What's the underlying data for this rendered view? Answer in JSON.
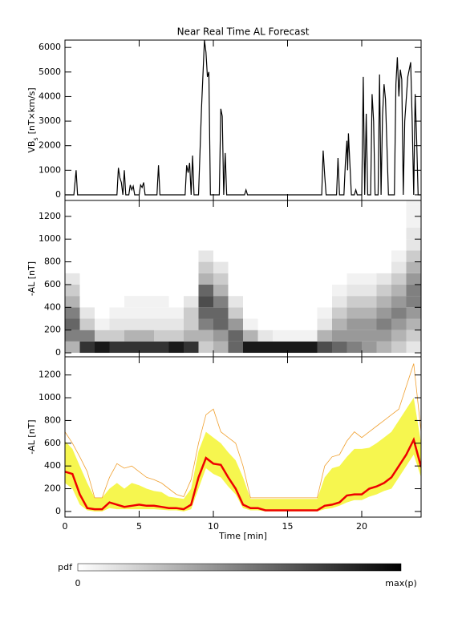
{
  "chart_data": [
    {
      "type": "line",
      "title": "Near Real Time AL Forecast",
      "ylabel": [
        "VB",
        "s",
        "[nT×km/s]"
      ],
      "color": "#000000",
      "xlim": [
        0,
        24
      ],
      "xticks": [
        0,
        5,
        10,
        15,
        20
      ],
      "show_xtick_labels": false,
      "ylim": [
        -230,
        6300
      ],
      "yticks": [
        0,
        1000,
        2000,
        3000,
        4000,
        5000,
        6000
      ],
      "x": [
        0,
        0.6,
        0.75,
        0.85,
        3.5,
        3.6,
        3.7,
        3.8,
        3.9,
        4.0,
        4.1,
        4.3,
        4.4,
        4.5,
        4.6,
        4.7,
        5.0,
        5.1,
        5.2,
        5.3,
        5.4,
        6.2,
        6.3,
        6.4,
        8.1,
        8.2,
        8.3,
        8.4,
        8.5,
        8.6,
        8.7,
        9.0,
        9.2,
        9.4,
        9.5,
        9.6,
        9.7,
        9.8,
        10.4,
        10.5,
        10.6,
        10.7,
        10.8,
        10.9,
        12.1,
        12.2,
        12.3,
        17.3,
        17.4,
        17.5,
        17.6,
        18.3,
        18.4,
        18.5,
        18.8,
        18.9,
        19.0,
        19.05,
        19.1,
        19.3,
        19.5,
        19.6,
        19.7,
        20.0,
        20.1,
        20.2,
        20.3,
        20.4,
        20.6,
        20.7,
        20.8,
        20.9,
        21.1,
        21.2,
        21.3,
        21.4,
        21.5,
        21.6,
        21.7,
        21.8,
        22.2,
        22.3,
        22.4,
        22.5,
        22.6,
        22.7,
        22.8,
        22.9,
        23.1,
        23.3,
        23.4,
        23.5,
        23.6,
        23.7,
        23.8,
        24.0
      ],
      "values": [
        0,
        0,
        1000,
        0,
        0,
        1100,
        700,
        500,
        0,
        1000,
        0,
        0,
        400,
        200,
        350,
        0,
        0,
        400,
        300,
        500,
        0,
        0,
        1200,
        0,
        0,
        1200,
        900,
        1300,
        0,
        1600,
        0,
        0,
        3500,
        6300,
        5800,
        4800,
        5000,
        0,
        0,
        3500,
        3200,
        0,
        1700,
        0,
        0,
        200,
        0,
        0,
        1800,
        800,
        0,
        0,
        1500,
        0,
        0,
        1300,
        2200,
        1000,
        2500,
        0,
        0,
        200,
        0,
        0,
        4800,
        0,
        3300,
        0,
        0,
        4100,
        3000,
        0,
        0,
        4900,
        0,
        3200,
        4500,
        3900,
        2000,
        0,
        0,
        4500,
        5600,
        4000,
        5100,
        4700,
        0,
        3000,
        4800,
        5400,
        3000,
        0,
        4100,
        2200,
        0,
        0
      ]
    },
    {
      "type": "heatmap",
      "ylabel": "-AL [nT]",
      "xlim": [
        0,
        24
      ],
      "xticks": [
        0,
        5,
        10,
        15,
        20
      ],
      "show_xtick_labels": false,
      "ylim": [
        -35,
        1340
      ],
      "yticks": [
        0,
        200,
        400,
        600,
        800,
        1000,
        1200
      ],
      "xbins": [
        0,
        1,
        2,
        3,
        4,
        5,
        6,
        7,
        8,
        9,
        10,
        11,
        12,
        13,
        14,
        15,
        16,
        17,
        18,
        19,
        20,
        21,
        22,
        23,
        24
      ],
      "ybins": [
        0,
        100,
        200,
        300,
        400,
        500,
        600,
        700,
        800,
        900,
        1000,
        1100,
        1200,
        1300,
        1400
      ],
      "z": [
        [
          0.3,
          0.5,
          0.6,
          0.5,
          0.3,
          0.2,
          0.1,
          0,
          0,
          0,
          0,
          0,
          0,
          0
        ],
        [
          0.8,
          0.5,
          0.2,
          0.1,
          0,
          0,
          0,
          0,
          0,
          0,
          0,
          0,
          0,
          0
        ],
        [
          0.9,
          0.2,
          0.05,
          0,
          0,
          0,
          0,
          0,
          0,
          0,
          0,
          0,
          0,
          0
        ],
        [
          0.8,
          0.2,
          0.1,
          0.05,
          0,
          0,
          0,
          0,
          0,
          0,
          0,
          0,
          0,
          0
        ],
        [
          0.8,
          0.3,
          0.1,
          0.05,
          0.05,
          0,
          0,
          0,
          0,
          0,
          0,
          0,
          0,
          0
        ],
        [
          0.8,
          0.3,
          0.1,
          0.05,
          0.05,
          0,
          0,
          0,
          0,
          0,
          0,
          0,
          0,
          0
        ],
        [
          0.8,
          0.2,
          0.1,
          0.05,
          0.05,
          0,
          0,
          0,
          0,
          0,
          0,
          0,
          0,
          0
        ],
        [
          0.9,
          0.2,
          0.1,
          0.05,
          0,
          0,
          0,
          0,
          0,
          0,
          0,
          0,
          0,
          0
        ],
        [
          0.8,
          0.3,
          0.2,
          0.2,
          0.1,
          0,
          0,
          0,
          0,
          0,
          0,
          0,
          0,
          0
        ],
        [
          0.2,
          0.3,
          0.5,
          0.6,
          0.7,
          0.6,
          0.3,
          0.2,
          0.1,
          0,
          0,
          0,
          0,
          0
        ],
        [
          0.3,
          0.4,
          0.6,
          0.6,
          0.5,
          0.3,
          0.2,
          0.1,
          0,
          0,
          0,
          0,
          0,
          0
        ],
        [
          0.6,
          0.6,
          0.4,
          0.2,
          0.1,
          0,
          0,
          0,
          0,
          0,
          0,
          0,
          0,
          0
        ],
        [
          0.9,
          0.3,
          0.05,
          0,
          0,
          0,
          0,
          0,
          0,
          0,
          0,
          0,
          0,
          0
        ],
        [
          0.9,
          0.1,
          0,
          0,
          0,
          0,
          0,
          0,
          0,
          0,
          0,
          0,
          0,
          0
        ],
        [
          0.9,
          0.05,
          0,
          0,
          0,
          0,
          0,
          0,
          0,
          0,
          0,
          0,
          0,
          0
        ],
        [
          0.9,
          0.05,
          0,
          0,
          0,
          0,
          0,
          0,
          0,
          0,
          0,
          0,
          0,
          0
        ],
        [
          0.9,
          0.05,
          0,
          0,
          0,
          0,
          0,
          0,
          0,
          0,
          0,
          0,
          0,
          0
        ],
        [
          0.7,
          0.3,
          0.1,
          0.05,
          0,
          0,
          0,
          0,
          0,
          0,
          0,
          0,
          0,
          0
        ],
        [
          0.6,
          0.4,
          0.3,
          0.2,
          0.1,
          0.05,
          0,
          0,
          0,
          0,
          0,
          0,
          0,
          0
        ],
        [
          0.5,
          0.4,
          0.4,
          0.3,
          0.2,
          0.1,
          0.05,
          0,
          0,
          0,
          0,
          0,
          0,
          0
        ],
        [
          0.4,
          0.4,
          0.4,
          0.3,
          0.2,
          0.1,
          0.05,
          0,
          0,
          0,
          0,
          0,
          0,
          0
        ],
        [
          0.3,
          0.4,
          0.5,
          0.4,
          0.3,
          0.2,
          0.1,
          0,
          0,
          0,
          0,
          0,
          0,
          0
        ],
        [
          0.2,
          0.3,
          0.4,
          0.5,
          0.4,
          0.3,
          0.2,
          0.1,
          0.05,
          0,
          0,
          0,
          0,
          0
        ],
        [
          0.1,
          0.2,
          0.3,
          0.4,
          0.5,
          0.5,
          0.4,
          0.3,
          0.2,
          0.1,
          0.1,
          0.05,
          0.05,
          0.05
        ]
      ],
      "colorbar": {
        "label": "pdf",
        "min_label": "0",
        "max_label": "max(p)"
      }
    },
    {
      "type": "line",
      "ylabel": "-AL [nT]",
      "xlabel": "Time [min]",
      "xlim": [
        0,
        24
      ],
      "xticks": [
        0,
        5,
        10,
        15,
        20
      ],
      "show_xtick_labels": true,
      "ylim": [
        -50,
        1360
      ],
      "yticks": [
        0,
        200,
        400,
        600,
        800,
        1000,
        1200
      ],
      "x": [
        0,
        0.5,
        1,
        1.5,
        2,
        2.5,
        3,
        3.5,
        4,
        4.5,
        5,
        5.5,
        6,
        6.5,
        7,
        7.5,
        8,
        8.5,
        9,
        9.5,
        10,
        10.5,
        11,
        11.5,
        12,
        12.5,
        13,
        13.5,
        14,
        14.5,
        15,
        15.5,
        16,
        16.5,
        17,
        17.5,
        18,
        18.5,
        19,
        19.5,
        20,
        20.5,
        21,
        21.5,
        22,
        22.5,
        23,
        23.5,
        24
      ],
      "band": {
        "color": "#f5f530",
        "upper": [
          620,
          550,
          400,
          250,
          120,
          120,
          200,
          250,
          200,
          250,
          230,
          200,
          180,
          170,
          130,
          120,
          110,
          200,
          530,
          700,
          650,
          600,
          520,
          450,
          300,
          110,
          110,
          110,
          110,
          110,
          110,
          110,
          110,
          110,
          110,
          300,
          380,
          400,
          480,
          550,
          550,
          560,
          600,
          650,
          700,
          800,
          900,
          1000,
          600
        ],
        "lower": [
          250,
          200,
          60,
          10,
          0,
          0,
          30,
          20,
          20,
          20,
          20,
          20,
          20,
          15,
          10,
          10,
          0,
          20,
          200,
          380,
          330,
          300,
          220,
          150,
          30,
          10,
          10,
          0,
          0,
          0,
          0,
          0,
          0,
          0,
          0,
          20,
          30,
          50,
          80,
          100,
          100,
          130,
          150,
          180,
          200,
          300,
          400,
          500,
          300
        ]
      },
      "max_line": {
        "color": "#f0a030",
        "values": [
          700,
          600,
          480,
          350,
          120,
          120,
          300,
          420,
          380,
          400,
          350,
          300,
          280,
          250,
          200,
          150,
          130,
          280,
          600,
          850,
          900,
          700,
          650,
          600,
          400,
          120,
          120,
          120,
          120,
          120,
          120,
          120,
          120,
          120,
          120,
          400,
          480,
          500,
          620,
          700,
          650,
          700,
          750,
          800,
          850,
          900,
          1100,
          1300,
          700
        ]
      },
      "median": {
        "color": "#ee0000",
        "values": [
          350,
          330,
          150,
          30,
          20,
          20,
          80,
          60,
          40,
          50,
          60,
          50,
          50,
          40,
          30,
          30,
          20,
          60,
          300,
          470,
          420,
          410,
          300,
          200,
          60,
          30,
          30,
          10,
          10,
          10,
          10,
          10,
          10,
          10,
          10,
          50,
          60,
          80,
          140,
          150,
          150,
          200,
          220,
          250,
          300,
          400,
          500,
          630,
          390
        ]
      }
    }
  ]
}
